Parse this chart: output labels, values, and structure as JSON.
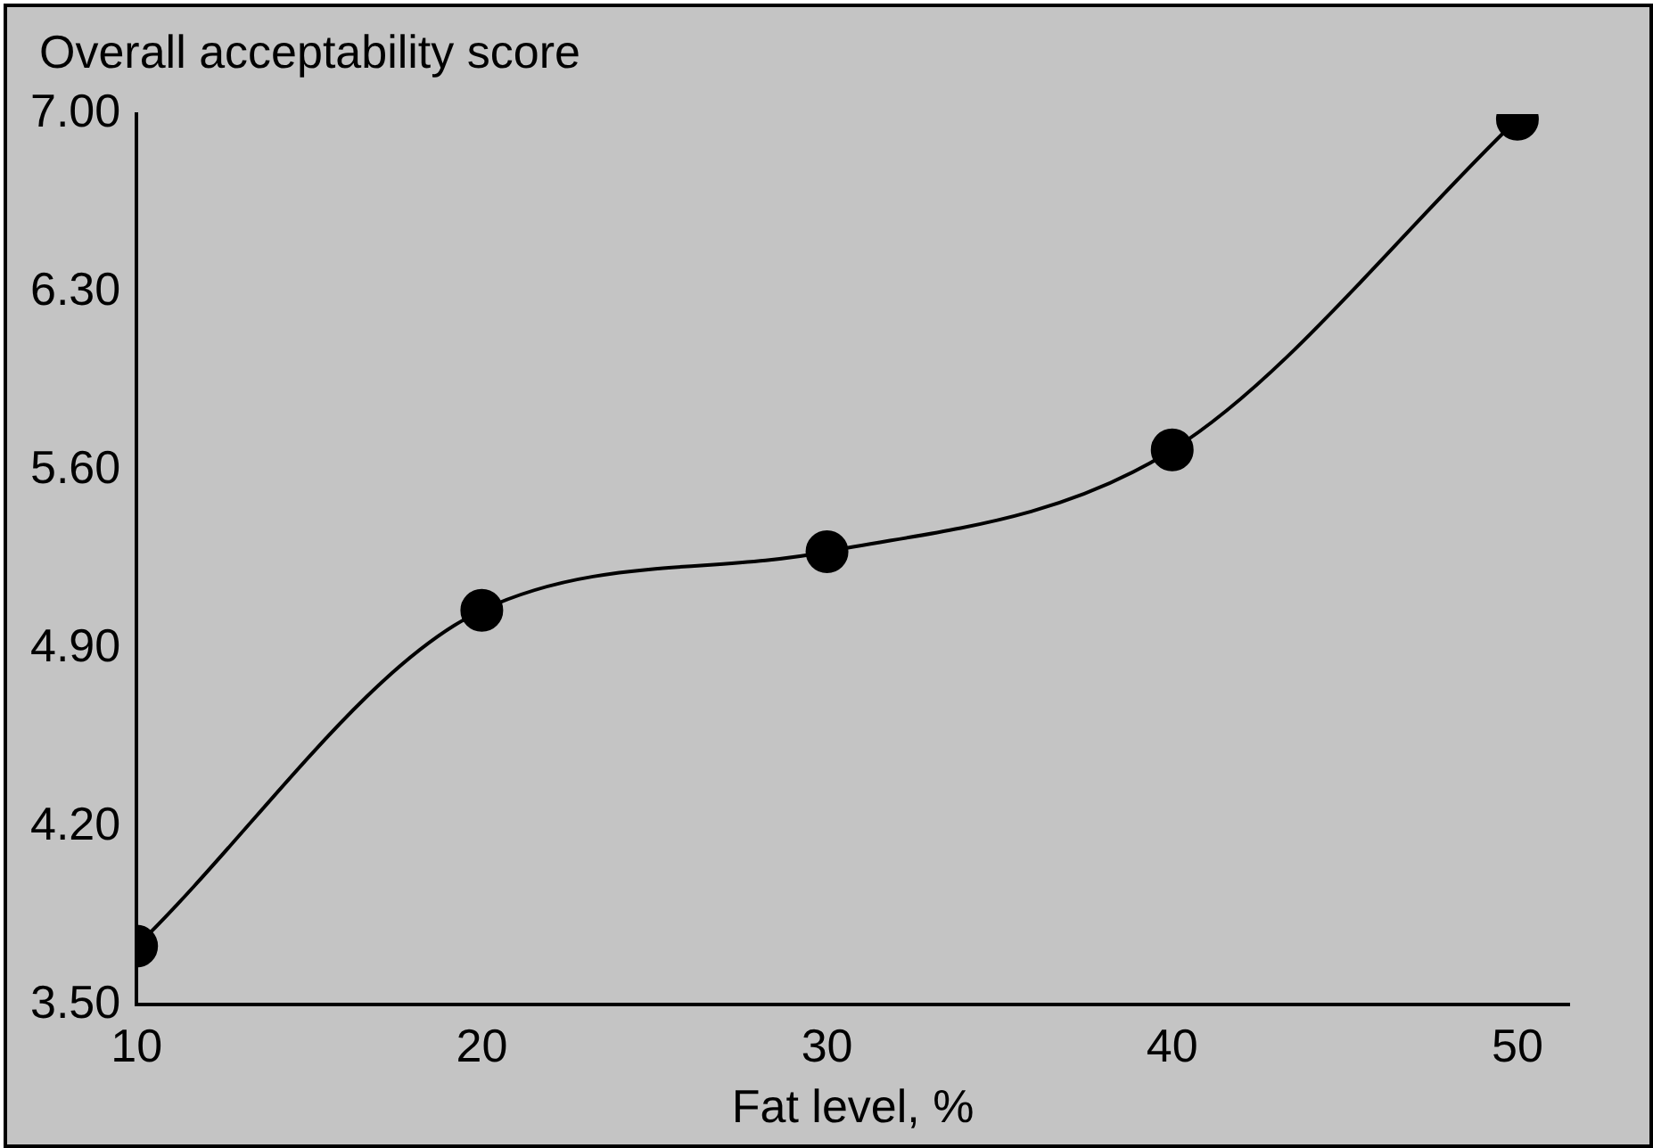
{
  "chart_data": {
    "type": "line",
    "ylabel": "Overall acceptability score",
    "xlabel": "Fat level, %",
    "x": [
      10,
      20,
      30,
      40,
      50
    ],
    "series": [
      {
        "color": "#000000",
        "values": [
          3.73,
          5.05,
          5.28,
          5.68,
          6.98
        ]
      }
    ],
    "xlim": [
      10,
      51.5
    ],
    "xticks": [
      10,
      20,
      30,
      40,
      50
    ],
    "ylim": [
      3.5,
      7.0
    ],
    "yticks": [
      {
        "value": 3.5,
        "label": "3.50"
      },
      {
        "value": 4.2,
        "label": "4.20"
      },
      {
        "value": 4.9,
        "label": "4.90"
      },
      {
        "value": 5.6,
        "label": "5.60"
      },
      {
        "value": 6.3,
        "label": "6.30"
      },
      {
        "value": 7.0,
        "label": "7.00"
      }
    ],
    "grid": false,
    "legend": false,
    "marker": "circle",
    "line_style": "solid"
  }
}
